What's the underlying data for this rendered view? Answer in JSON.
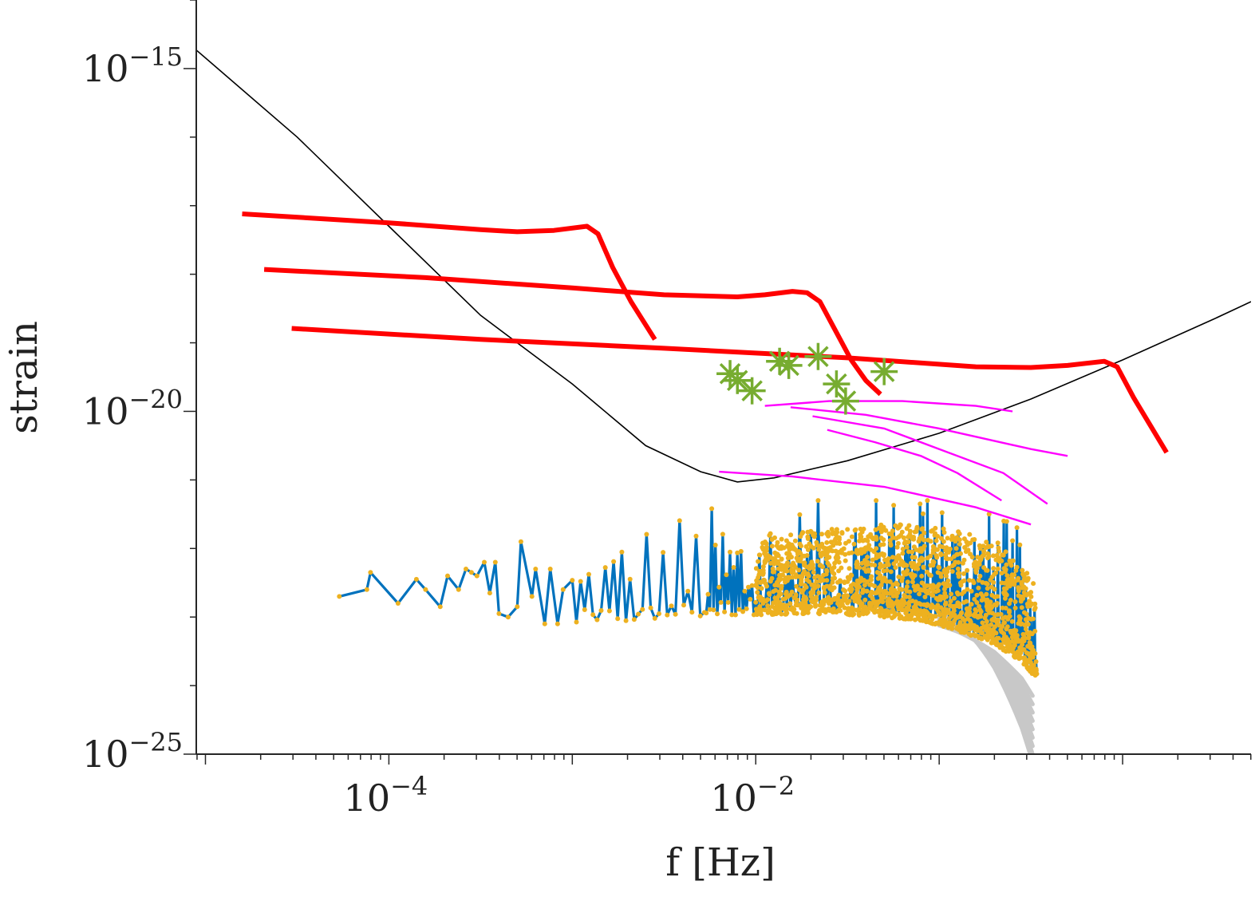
{
  "chart_data": {
    "type": "line",
    "title": "",
    "xlabel": "f [Hz]",
    "ylabel": "strain",
    "xscale": "log",
    "yscale": "log",
    "xlim_log10": [
      -5.05,
      0.7
    ],
    "ylim_log10": [
      -25,
      -14
    ],
    "x_ticks": [
      {
        "log10": -4,
        "label": "10",
        "exp": "−4"
      },
      {
        "log10": -2,
        "label": "10",
        "exp": "−2"
      }
    ],
    "y_ticks": [
      {
        "log10": -15,
        "label": "10",
        "exp": "−15"
      },
      {
        "log10": -20,
        "label": "10",
        "exp": "−20"
      },
      {
        "log10": -25,
        "label": "10",
        "exp": "−25"
      }
    ],
    "colors": {
      "sensitivity": "#000000",
      "tracks": "#ff0000",
      "stars": "#77ac30",
      "magenta": "#ff00ff",
      "spectrum_line": "#0072bd",
      "spectrum_markers": "#edb120",
      "gray": "#c8c8c8"
    },
    "series": [
      {
        "name": "sensitivity curve",
        "style": "thin-black",
        "points": [
          [
            -5.05,
            -14.73
          ],
          [
            -4.5,
            -16.0
          ],
          [
            -4.0,
            -17.3
          ],
          [
            -3.5,
            -18.6
          ],
          [
            -3.0,
            -19.6
          ],
          [
            -2.6,
            -20.5
          ],
          [
            -2.3,
            -20.88
          ],
          [
            -2.1,
            -21.03
          ],
          [
            -1.9,
            -20.97
          ],
          [
            -1.5,
            -20.72
          ],
          [
            -1.0,
            -20.32
          ],
          [
            -0.5,
            -19.82
          ],
          [
            0.0,
            -19.25
          ],
          [
            0.5,
            -18.65
          ],
          [
            0.7,
            -18.4
          ]
        ]
      },
      {
        "name": "track 1",
        "style": "thick-red",
        "points": [
          [
            -4.8,
            -17.12
          ],
          [
            -4.0,
            -17.25
          ],
          [
            -3.5,
            -17.35
          ],
          [
            -3.3,
            -17.38
          ],
          [
            -3.1,
            -17.36
          ],
          [
            -2.92,
            -17.3
          ],
          [
            -2.86,
            -17.41
          ],
          [
            -2.78,
            -17.9
          ],
          [
            -2.68,
            -18.4
          ],
          [
            -2.55,
            -18.95
          ]
        ]
      },
      {
        "name": "track 2",
        "style": "thick-red",
        "points": [
          [
            -4.68,
            -17.93
          ],
          [
            -3.8,
            -18.05
          ],
          [
            -3.0,
            -18.2
          ],
          [
            -2.5,
            -18.3
          ],
          [
            -2.1,
            -18.33
          ],
          [
            -1.95,
            -18.3
          ],
          [
            -1.8,
            -18.25
          ],
          [
            -1.72,
            -18.27
          ],
          [
            -1.65,
            -18.4
          ],
          [
            -1.58,
            -18.75
          ],
          [
            -1.48,
            -19.25
          ],
          [
            -1.4,
            -19.55
          ],
          [
            -1.32,
            -19.75
          ]
        ]
      },
      {
        "name": "track 3",
        "style": "thick-red",
        "points": [
          [
            -4.53,
            -18.79
          ],
          [
            -3.5,
            -18.95
          ],
          [
            -2.5,
            -19.08
          ],
          [
            -1.5,
            -19.22
          ],
          [
            -0.8,
            -19.35
          ],
          [
            -0.5,
            -19.36
          ],
          [
            -0.3,
            -19.33
          ],
          [
            -0.1,
            -19.27
          ],
          [
            -0.03,
            -19.35
          ],
          [
            0.06,
            -19.8
          ],
          [
            0.15,
            -20.2
          ],
          [
            0.24,
            -20.6
          ]
        ]
      },
      {
        "name": "sources (stars)",
        "style": "green-asterisk",
        "points": [
          [
            -2.14,
            -19.45
          ],
          [
            -2.1,
            -19.55
          ],
          [
            -2.02,
            -19.7
          ],
          [
            -1.87,
            -19.27
          ],
          [
            -1.82,
            -19.33
          ],
          [
            -1.66,
            -19.2
          ],
          [
            -1.56,
            -19.6
          ],
          [
            -1.51,
            -19.85
          ],
          [
            -1.3,
            -19.42
          ]
        ]
      },
      {
        "name": "magenta tracks",
        "style": "thin-magenta",
        "multi": [
          [
            [
              -2.2,
              -20.88
            ],
            [
              -1.8,
              -20.95
            ],
            [
              -1.3,
              -21.1
            ],
            [
              -0.8,
              -21.4
            ],
            [
              -0.5,
              -21.65
            ]
          ],
          [
            [
              -1.95,
              -19.92
            ],
            [
              -1.6,
              -19.85
            ],
            [
              -1.2,
              -19.85
            ],
            [
              -0.8,
              -19.92
            ],
            [
              -0.6,
              -20.0
            ]
          ],
          [
            [
              -1.81,
              -19.94
            ],
            [
              -1.4,
              -20.05
            ],
            [
              -1.0,
              -20.25
            ],
            [
              -0.5,
              -20.55
            ],
            [
              -0.3,
              -20.65
            ]
          ],
          [
            [
              -1.69,
              -20.07
            ],
            [
              -1.3,
              -20.25
            ],
            [
              -1.0,
              -20.55
            ],
            [
              -0.65,
              -20.9
            ],
            [
              -0.41,
              -21.35
            ]
          ],
          [
            [
              -1.61,
              -20.27
            ],
            [
              -1.35,
              -20.45
            ],
            [
              -1.1,
              -20.65
            ],
            [
              -0.9,
              -20.9
            ],
            [
              -0.66,
              -21.3
            ]
          ]
        ]
      },
      {
        "name": "signal spectrum envelope",
        "style": "blue-orange-spectrum",
        "lower_envelope": [
          [
            -3.0,
            -23.15
          ],
          [
            -2.5,
            -23.06
          ],
          [
            -2.0,
            -22.97
          ],
          [
            -1.7,
            -22.95
          ],
          [
            -1.4,
            -22.98
          ],
          [
            -1.1,
            -23.05
          ],
          [
            -0.9,
            -23.2
          ],
          [
            -0.7,
            -23.4
          ],
          [
            -0.55,
            -23.65
          ],
          [
            -0.47,
            -23.9
          ]
        ],
        "upper_envelope": [
          [
            -3.0,
            -22.3
          ],
          [
            -2.5,
            -21.9
          ],
          [
            -2.0,
            -21.8
          ],
          [
            -1.7,
            -21.75
          ],
          [
            -1.4,
            -21.65
          ],
          [
            -1.1,
            -21.65
          ],
          [
            -0.8,
            -21.8
          ],
          [
            -0.6,
            -22.1
          ],
          [
            -0.47,
            -22.5
          ]
        ],
        "x_start": -4.27,
        "x_end": -0.47
      }
    ]
  }
}
